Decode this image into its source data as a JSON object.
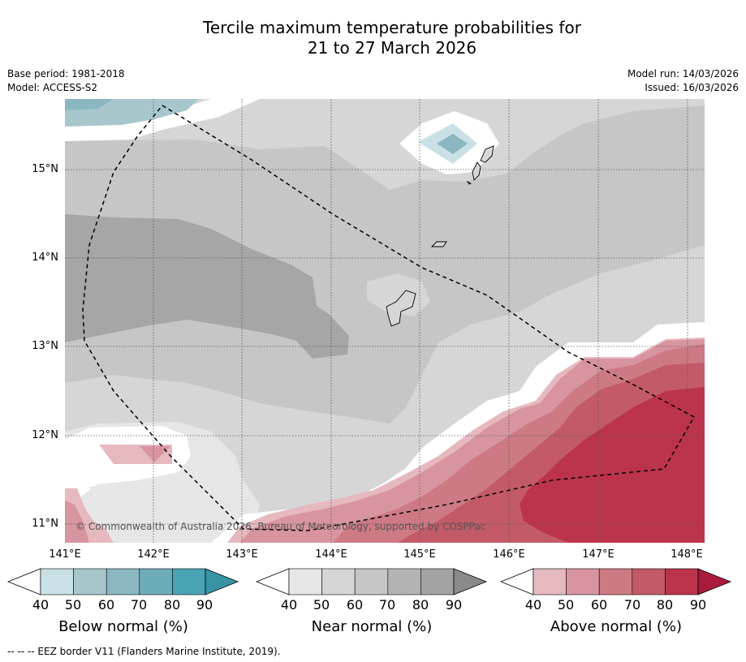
{
  "title_line1": "Tercile maximum temperature probabilities for",
  "title_line2": "21 to 27 March 2026",
  "base_period": "Base period: 1981-2018",
  "model": "Model: ACCESS-S2",
  "model_run": "Model run: 14/03/2026",
  "issued": "Issued: 16/03/2026",
  "lat_labels": [
    "15°N",
    "14°N",
    "13°N",
    "12°N",
    "11°N"
  ],
  "lon_labels": [
    "141°E",
    "142°E",
    "143°E",
    "144°E",
    "145°E",
    "146°E",
    "147°E",
    "148°E"
  ],
  "copyright": "© Commonwealth of Australia 2026, Bureau of Meteorology, supported by COSPPac",
  "colorbars": [
    {
      "name": "below",
      "label": "Below normal (%)",
      "ticks": [
        "40",
        "50",
        "60",
        "70",
        "80",
        "90"
      ],
      "colors": [
        "#ffffff",
        "#c8e0e6",
        "#a7c7cc",
        "#8ab7c1",
        "#6dacb9",
        "#4aa3b5",
        "#3993a6"
      ]
    },
    {
      "name": "near",
      "label": "Near normal (%)",
      "ticks": [
        "40",
        "50",
        "60",
        "70",
        "80",
        "90"
      ],
      "colors": [
        "#ffffff",
        "#e6e6e6",
        "#d6d6d6",
        "#c6c6c6",
        "#b3b3b3",
        "#a3a3a3",
        "#8a8a8a"
      ]
    },
    {
      "name": "above",
      "label": "Above normal (%)",
      "ticks": [
        "40",
        "50",
        "60",
        "70",
        "80",
        "90"
      ],
      "colors": [
        "#ffffff",
        "#e6b9bf",
        "#d8959f",
        "#cd7a84",
        "#c35a68",
        "#bb344c",
        "#ab1a3a"
      ]
    }
  ],
  "footnote": "--  --  -- EEZ border V11 (Flanders Marine Institute, 2019)."
}
